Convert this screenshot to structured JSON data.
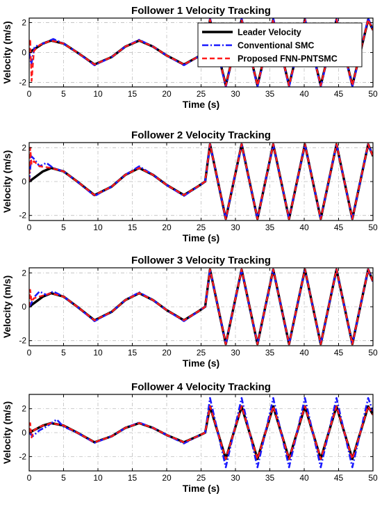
{
  "chart_data": [
    {
      "type": "line",
      "title": "Follower 1 Velocity Tracking",
      "xlabel": "Time (s)",
      "ylabel": "Velocity (m/s)",
      "xlim": [
        0,
        50
      ],
      "ylim": [
        -2.3,
        2.3
      ],
      "xticks": [
        0,
        5,
        10,
        15,
        20,
        25,
        30,
        35,
        40,
        45,
        50
      ],
      "yticks": [
        -2,
        0,
        2
      ],
      "grid": true,
      "legend": "top-right",
      "series": [
        {
          "name": "Leader Velocity",
          "color": "#000000",
          "style": "solid",
          "x": [
            0,
            2,
            3.2,
            5,
            7,
            9.5,
            12,
            14,
            16,
            18,
            20,
            22.5,
            24.5,
            25.6,
            26.3,
            28.6,
            30.9,
            33.2,
            35.5,
            37.8,
            40.1,
            42.4,
            44.7,
            47.0,
            49.3,
            50
          ],
          "y": [
            0.0,
            0.6,
            0.8,
            0.6,
            0.0,
            -0.8,
            -0.3,
            0.4,
            0.8,
            0.4,
            -0.2,
            -0.8,
            -0.3,
            0.0,
            2.2,
            -2.2,
            2.2,
            -2.2,
            2.2,
            -2.2,
            2.2,
            -2.2,
            2.2,
            -2.2,
            2.2,
            1.5
          ]
        },
        {
          "name": "Conventional SMC",
          "color": "#1a1aff",
          "style": "dash-dot",
          "x": [
            0,
            0.3,
            0.8,
            1.5,
            2.5,
            3.5,
            5,
            7,
            9.5,
            12,
            14,
            16,
            18,
            20,
            22.5,
            24.5,
            25.6,
            26.3,
            28.6,
            30.9,
            33.2,
            35.5,
            37.8,
            40.1,
            42.4,
            44.7,
            47.0,
            49.3,
            50
          ],
          "y": [
            0.0,
            -0.8,
            0.4,
            0.5,
            0.7,
            0.9,
            0.6,
            0.0,
            -0.85,
            -0.3,
            0.4,
            0.85,
            0.4,
            -0.2,
            -0.85,
            -0.3,
            0.0,
            2.3,
            -2.3,
            2.3,
            -2.3,
            2.3,
            -2.3,
            2.3,
            -2.3,
            2.3,
            -2.3,
            2.3,
            1.5
          ]
        },
        {
          "name": "Proposed FNN-PNTSMC",
          "color": "#ff1a1a",
          "style": "dashed",
          "x": [
            0,
            0.15,
            0.35,
            0.7,
            1.5,
            3.2,
            5,
            7,
            9.5,
            12,
            14,
            16,
            18,
            20,
            22.5,
            24.5,
            25.6,
            26.3,
            28.6,
            30.9,
            33.2,
            35.5,
            37.8,
            40.1,
            42.4,
            44.7,
            47.0,
            49.3,
            50
          ],
          "y": [
            0.0,
            0.9,
            -1.9,
            0.1,
            0.5,
            0.8,
            0.6,
            0.0,
            -0.8,
            -0.3,
            0.4,
            0.8,
            0.4,
            -0.2,
            -0.8,
            -0.3,
            0.0,
            2.2,
            -2.2,
            2.2,
            -2.2,
            2.2,
            -2.2,
            2.2,
            -2.2,
            2.2,
            -2.2,
            2.2,
            1.5
          ]
        }
      ]
    },
    {
      "type": "line",
      "title": "Follower 2 Velocity Tracking",
      "xlabel": "Time (s)",
      "ylabel": "Velocity (m/s)",
      "xlim": [
        0,
        50
      ],
      "ylim": [
        -2.3,
        2.3
      ],
      "xticks": [
        0,
        5,
        10,
        15,
        20,
        25,
        30,
        35,
        40,
        45,
        50
      ],
      "yticks": [
        -2,
        0,
        2
      ],
      "grid": true,
      "series": [
        {
          "name": "Leader Velocity",
          "color": "#000000",
          "style": "solid",
          "x": [
            0,
            2,
            3.2,
            5,
            7,
            9.5,
            12,
            14,
            16,
            18,
            20,
            22.5,
            24.5,
            25.6,
            26.3,
            28.6,
            30.9,
            33.2,
            35.5,
            37.8,
            40.1,
            42.4,
            44.7,
            47.0,
            49.3,
            50
          ],
          "y": [
            0.0,
            0.6,
            0.8,
            0.6,
            0.0,
            -0.8,
            -0.3,
            0.4,
            0.8,
            0.4,
            -0.2,
            -0.8,
            -0.3,
            0.0,
            2.2,
            -2.2,
            2.2,
            -2.2,
            2.2,
            -2.2,
            2.2,
            -2.2,
            2.2,
            -2.2,
            2.2,
            1.5
          ]
        },
        {
          "name": "Conventional SMC",
          "color": "#1a1aff",
          "style": "dash-dot",
          "x": [
            0,
            0.3,
            0.8,
            1.5,
            2.5,
            3.5,
            5,
            7,
            9.5,
            12,
            14,
            16,
            18,
            20,
            22.5,
            24.5,
            25.6,
            26.3,
            28.6,
            30.9,
            33.2,
            35.5,
            37.8,
            40.1,
            42.4,
            44.7,
            47.0,
            49.3,
            50
          ],
          "y": [
            0.0,
            1.5,
            1.3,
            0.9,
            1.1,
            0.8,
            0.6,
            0.0,
            -0.85,
            -0.3,
            0.4,
            0.9,
            0.4,
            -0.2,
            -0.85,
            -0.3,
            0.0,
            2.2,
            -2.2,
            2.2,
            -2.2,
            2.2,
            -2.2,
            2.2,
            -2.2,
            2.2,
            -2.2,
            2.2,
            1.5
          ]
        },
        {
          "name": "Proposed FNN-PNTSMC",
          "color": "#ff1a1a",
          "style": "dashed",
          "x": [
            0,
            0.15,
            0.35,
            0.7,
            1.5,
            3.2,
            5,
            7,
            9.5,
            12,
            14,
            16,
            18,
            20,
            22.5,
            24.5,
            25.6,
            26.3,
            28.6,
            30.9,
            33.2,
            35.5,
            37.8,
            40.1,
            42.4,
            44.7,
            47.0,
            49.3,
            50
          ],
          "y": [
            0.0,
            2.0,
            1.0,
            1.2,
            0.9,
            0.8,
            0.6,
            0.0,
            -0.8,
            -0.3,
            0.4,
            0.8,
            0.4,
            -0.2,
            -0.8,
            -0.3,
            0.0,
            2.2,
            -2.2,
            2.2,
            -2.2,
            2.2,
            -2.2,
            2.2,
            -2.2,
            2.2,
            -2.2,
            2.2,
            1.5
          ]
        }
      ]
    },
    {
      "type": "line",
      "title": "Follower 3 Velocity Tracking",
      "xlabel": "Time (s)",
      "ylabel": "Velocity (m/s)",
      "xlim": [
        0,
        50
      ],
      "ylim": [
        -2.3,
        2.3
      ],
      "xticks": [
        0,
        5,
        10,
        15,
        20,
        25,
        30,
        35,
        40,
        45,
        50
      ],
      "yticks": [
        -2,
        0,
        2
      ],
      "grid": true,
      "series": [
        {
          "name": "Leader Velocity",
          "color": "#000000",
          "style": "solid",
          "x": [
            0,
            2,
            3.2,
            5,
            7,
            9.5,
            12,
            14,
            16,
            18,
            20,
            22.5,
            24.5,
            25.6,
            26.3,
            28.6,
            30.9,
            33.2,
            35.5,
            37.8,
            40.1,
            42.4,
            44.7,
            47.0,
            49.3,
            50
          ],
          "y": [
            0.0,
            0.6,
            0.8,
            0.6,
            0.0,
            -0.8,
            -0.3,
            0.4,
            0.8,
            0.4,
            -0.2,
            -0.8,
            -0.3,
            0.0,
            2.2,
            -2.2,
            2.2,
            -2.2,
            2.2,
            -2.2,
            2.2,
            -2.2,
            2.2,
            -2.2,
            2.2,
            1.5
          ]
        },
        {
          "name": "Conventional SMC",
          "color": "#1a1aff",
          "style": "dash-dot",
          "x": [
            0,
            0.3,
            0.8,
            1.5,
            2.5,
            3.5,
            5,
            7,
            9.5,
            12,
            14,
            16,
            18,
            20,
            22.5,
            24.5,
            25.6,
            26.3,
            28.6,
            30.9,
            33.2,
            35.5,
            37.8,
            40.1,
            42.4,
            44.7,
            47.0,
            49.3,
            50
          ],
          "y": [
            0.0,
            0.2,
            0.6,
            0.9,
            0.7,
            0.9,
            0.6,
            0.0,
            -0.85,
            -0.3,
            0.4,
            0.85,
            0.4,
            -0.2,
            -0.85,
            -0.3,
            0.0,
            2.2,
            -2.2,
            2.2,
            -2.2,
            2.2,
            -2.2,
            2.2,
            -2.2,
            2.2,
            -2.2,
            2.2,
            1.5
          ]
        },
        {
          "name": "Proposed FNN-PNTSMC",
          "color": "#ff1a1a",
          "style": "dashed",
          "x": [
            0,
            0.15,
            0.35,
            0.7,
            1.5,
            3.2,
            5,
            7,
            9.5,
            12,
            14,
            16,
            18,
            20,
            22.5,
            24.5,
            25.6,
            26.3,
            28.6,
            30.9,
            33.2,
            35.5,
            37.8,
            40.1,
            42.4,
            44.7,
            47.0,
            49.3,
            50
          ],
          "y": [
            0.0,
            1.0,
            0.3,
            0.5,
            0.6,
            0.8,
            0.6,
            0.0,
            -0.8,
            -0.3,
            0.4,
            0.8,
            0.4,
            -0.2,
            -0.8,
            -0.3,
            0.0,
            2.2,
            -2.2,
            2.2,
            -2.2,
            2.2,
            -2.2,
            2.2,
            -2.2,
            2.2,
            -2.2,
            2.2,
            1.5
          ]
        }
      ]
    },
    {
      "type": "line",
      "title": "Follower 4 Velocity Tracking",
      "xlabel": "Time (s)",
      "ylabel": "Velocity (m/s)",
      "xlim": [
        0,
        50
      ],
      "ylim": [
        -3.2,
        3.2
      ],
      "xticks": [
        0,
        5,
        10,
        15,
        20,
        25,
        30,
        35,
        40,
        45,
        50
      ],
      "yticks": [
        -2,
        0,
        2
      ],
      "grid": true,
      "series": [
        {
          "name": "Leader Velocity",
          "color": "#000000",
          "style": "solid",
          "x": [
            0,
            2,
            3.2,
            5,
            7,
            9.5,
            12,
            14,
            16,
            18,
            20,
            22.5,
            24.5,
            25.6,
            26.3,
            28.6,
            30.9,
            33.2,
            35.5,
            37.8,
            40.1,
            42.4,
            44.7,
            47.0,
            49.3,
            50
          ],
          "y": [
            0.0,
            0.6,
            0.8,
            0.6,
            0.0,
            -0.8,
            -0.3,
            0.4,
            0.8,
            0.4,
            -0.2,
            -0.8,
            -0.3,
            0.0,
            2.2,
            -2.2,
            2.2,
            -2.2,
            2.2,
            -2.2,
            2.2,
            -2.2,
            2.2,
            -2.2,
            2.2,
            1.5
          ]
        },
        {
          "name": "Conventional SMC",
          "color": "#1a1aff",
          "style": "dash-dot",
          "x": [
            0,
            0.5,
            1.5,
            2.5,
            4.0,
            5,
            7,
            9.5,
            12,
            14,
            16,
            18,
            20,
            22.5,
            24.5,
            25.6,
            26.3,
            28.6,
            30.9,
            33.2,
            35.5,
            37.8,
            40.1,
            42.4,
            44.7,
            47.0,
            49.3,
            50
          ],
          "y": [
            0.0,
            -0.3,
            0.2,
            0.5,
            1.1,
            0.5,
            0.0,
            -0.85,
            -0.3,
            0.4,
            0.85,
            0.4,
            -0.2,
            -0.9,
            -0.3,
            0.0,
            2.9,
            -2.9,
            2.9,
            -2.9,
            2.9,
            -2.9,
            2.9,
            -2.9,
            2.9,
            -2.9,
            2.9,
            1.8
          ]
        },
        {
          "name": "Proposed FNN-PNTSMC",
          "color": "#ff1a1a",
          "style": "dashed",
          "x": [
            0,
            0.15,
            0.35,
            0.7,
            1.5,
            3.2,
            5,
            7,
            9.5,
            12,
            14,
            16,
            18,
            20,
            22.5,
            24.5,
            25.6,
            26.3,
            28.6,
            30.9,
            33.2,
            35.5,
            37.8,
            40.1,
            42.4,
            44.7,
            47.0,
            49.3,
            50
          ],
          "y": [
            0.0,
            0.8,
            -0.4,
            0.2,
            0.5,
            0.8,
            0.6,
            0.0,
            -0.8,
            -0.3,
            0.4,
            0.8,
            0.4,
            -0.2,
            -0.8,
            -0.3,
            0.0,
            2.2,
            -2.2,
            2.2,
            -2.2,
            2.2,
            -2.2,
            2.2,
            -2.2,
            2.2,
            -2.2,
            2.2,
            1.5
          ]
        }
      ]
    }
  ]
}
